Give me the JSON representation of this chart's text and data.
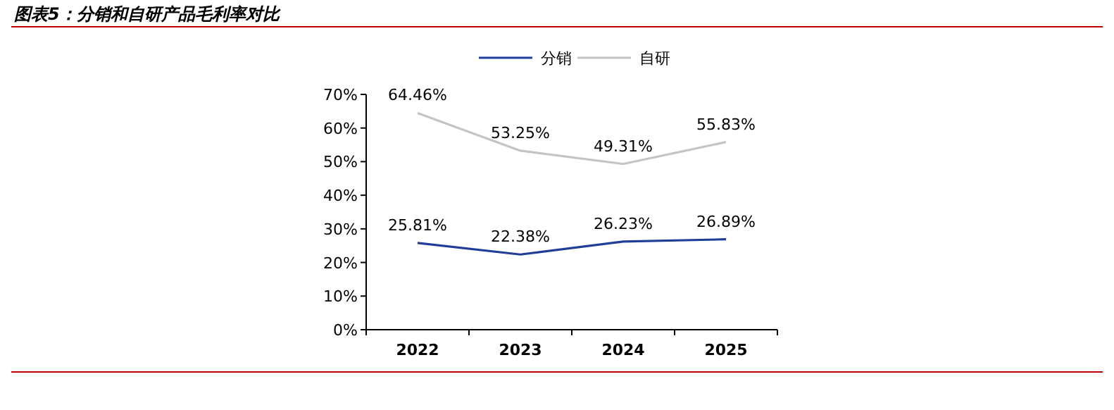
{
  "chart_data": {
    "type": "line",
    "title": "图表5：分销和自研产品毛利率对比",
    "categories": [
      "2022",
      "2023",
      "2024",
      "2025"
    ],
    "series": [
      {
        "name": "分销",
        "color": "#1f3d99",
        "values": [
          25.81,
          22.38,
          26.23,
          26.89
        ],
        "value_labels": [
          "25.81%",
          "22.38%",
          "26.23%",
          "26.89%"
        ]
      },
      {
        "name": "自研",
        "color": "#c4c4c4",
        "values": [
          64.46,
          53.25,
          49.31,
          55.83
        ],
        "value_labels": [
          "64.46%",
          "53.25%",
          "49.31%",
          "55.83%"
        ]
      }
    ],
    "ylim": [
      0,
      70
    ],
    "yticks": [
      {
        "value": 0,
        "label": "0%"
      },
      {
        "value": 10,
        "label": "10%"
      },
      {
        "value": 20,
        "label": "20%"
      },
      {
        "value": 30,
        "label": "30%"
      },
      {
        "value": 40,
        "label": "40%"
      },
      {
        "value": 50,
        "label": "50%"
      },
      {
        "value": 60,
        "label": "60%"
      },
      {
        "value": 70,
        "label": "70%"
      }
    ],
    "legend": "top",
    "grid": false,
    "marker": "none",
    "line_style": "solid"
  }
}
